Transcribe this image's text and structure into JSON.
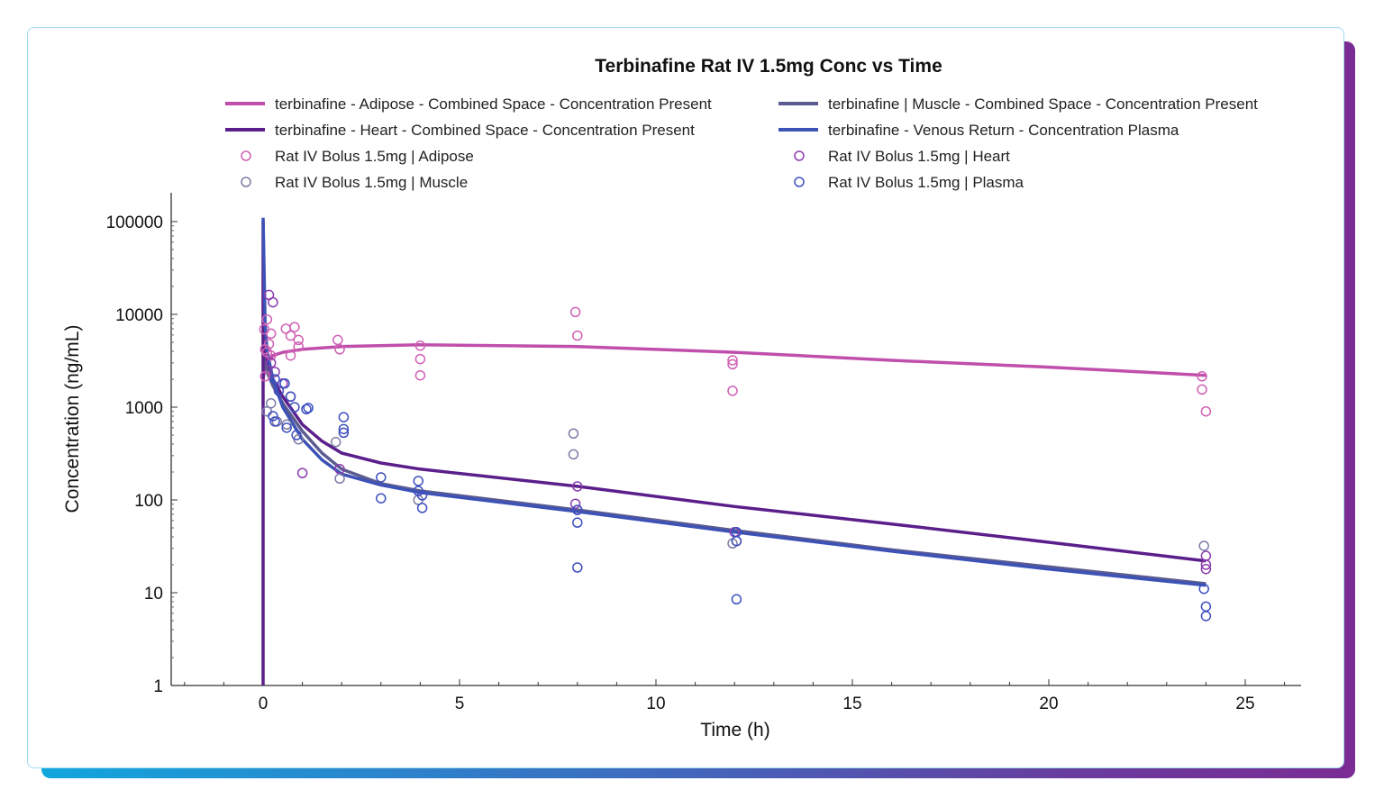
{
  "chart_data": {
    "type": "line",
    "title": "Terbinafine Rat IV 1.5mg Conc vs Time",
    "xlabel": "Time (h)",
    "ylabel": "Concentration (ng/mL)",
    "xlim": [
      -2.35,
      26.4
    ],
    "ylim": [
      1,
      200000
    ],
    "yscale": "log",
    "grid": false,
    "legend_position": "top",
    "x_ticks": [
      "0",
      "5",
      "10",
      "15",
      "20",
      "25"
    ],
    "x_tick_values": [
      0,
      5,
      10,
      15,
      20,
      25
    ],
    "y_ticks": [
      "1",
      "10",
      "100",
      "1000",
      "10000",
      "100000"
    ],
    "y_tick_values": [
      1,
      10,
      100,
      1000,
      10000,
      100000
    ],
    "series": [
      {
        "name": "terbinafine - Adipose - Combined Space - Concentration Present",
        "kind": "line",
        "color": "#c04fac",
        "x": [
          0,
          0.05,
          0.1,
          0.25,
          0.5,
          1,
          2,
          4,
          8,
          12,
          16,
          20,
          24
        ],
        "y": [
          2000,
          2600,
          3000,
          3600,
          3900,
          4200,
          4500,
          4700,
          4500,
          3900,
          3200,
          2700,
          2200
        ]
      },
      {
        "name": "terbinafine | Muscle - Combined Space - Concentration Present",
        "kind": "line",
        "color": "#5b5b8f",
        "x": [
          0,
          0.05,
          0.1,
          0.25,
          0.5,
          1,
          1.5,
          2,
          3,
          4,
          8,
          12,
          16,
          20,
          24
        ],
        "y": [
          4000,
          3000,
          2400,
          1700,
          1100,
          550,
          320,
          215,
          150,
          125,
          78,
          47,
          29,
          19,
          12.5
        ]
      },
      {
        "name": "terbinafine - Heart - Combined Space - Concentration Present",
        "kind": "line",
        "color": "#5b1f8c",
        "x": [
          0,
          0,
          0.05,
          0.1,
          0.25,
          0.5,
          1,
          1.5,
          2,
          3,
          4,
          8,
          12,
          16,
          20,
          24
        ],
        "y": [
          1,
          100000,
          5000,
          3200,
          2000,
          1300,
          650,
          430,
          320,
          250,
          215,
          140,
          85,
          55,
          35,
          22
        ]
      },
      {
        "name": "terbinafine - Venous Return - Concentration Plasma",
        "kind": "line",
        "color": "#3d52b6",
        "x": [
          0,
          0.05,
          0.1,
          0.25,
          0.5,
          1,
          1.5,
          2,
          3,
          4,
          8,
          12,
          16,
          20,
          24
        ],
        "y": [
          110000,
          8000,
          4000,
          2000,
          1000,
          450,
          270,
          190,
          145,
          120,
          75,
          45,
          28,
          18,
          12
        ]
      },
      {
        "name": "Rat IV Bolus 1.5mg | Adipose",
        "kind": "scatter",
        "color": "#d060b4",
        "x": [
          0.03,
          0.1,
          0.2,
          0.1,
          0.2,
          0.58,
          0.8,
          0.7,
          0.9,
          0.9,
          0.7,
          0.05,
          0.15,
          0.05,
          1.9,
          1.95,
          4.0,
          4.0,
          4.0,
          7.95,
          8.0,
          11.95,
          11.95,
          11.95,
          23.9,
          23.9,
          24.0
        ],
        "y": [
          6900,
          8800,
          6200,
          3900,
          3600,
          7000,
          7300,
          5900,
          5300,
          4500,
          3600,
          4200,
          4800,
          2150,
          5300,
          4200,
          4600,
          3300,
          2200,
          10600,
          5900,
          3200,
          2900,
          1500,
          2150,
          1550,
          900
        ]
      },
      {
        "name": "Rat IV Bolus 1.5mg | Heart",
        "kind": "scatter",
        "color": "#8a3cae",
        "x": [
          0.15,
          0.25,
          0.2,
          0.3,
          0.5,
          0.7,
          1.0,
          1.95,
          8.0,
          7.95,
          8.0,
          12.0,
          24.0,
          24.0,
          24.0
        ],
        "y": [
          16200,
          13500,
          3000,
          2400,
          1800,
          1300,
          195,
          215,
          140,
          91,
          78,
          45,
          25,
          20,
          18
        ]
      },
      {
        "name": "Rat IV Bolus 1.5mg | Muscle",
        "kind": "scatter",
        "color": "#7c7ca6",
        "x": [
          0.1,
          0.2,
          0.35,
          0.6,
          0.9,
          1.85,
          1.95,
          7.9,
          7.9,
          3.95,
          11.95,
          12.05,
          23.95
        ],
        "y": [
          900,
          1100,
          700,
          650,
          450,
          420,
          170,
          520,
          310,
          100,
          34,
          36,
          32
        ]
      },
      {
        "name": "Rat IV Bolus 1.5mg  | Plasma",
        "kind": "scatter",
        "color": "#3d4fbf",
        "x": [
          0.3,
          0.4,
          0.55,
          0.7,
          0.8,
          1.1,
          1.15,
          0.25,
          0.3,
          0.6,
          0.85,
          2.05,
          2.05,
          2.05,
          3.0,
          3.0,
          3.95,
          3.95,
          4.05,
          4.05,
          8.0,
          8.0,
          8.0,
          12.05,
          12.05,
          12.05,
          23.95,
          24.0,
          24.0
        ],
        "y": [
          2000,
          1500,
          1800,
          1300,
          1000,
          950,
          980,
          800,
          700,
          600,
          500,
          780,
          580,
          530,
          175,
          104,
          160,
          125,
          112,
          82,
          78,
          57,
          18.7,
          45,
          36,
          8.5,
          11,
          7.1,
          5.6
        ]
      }
    ]
  }
}
